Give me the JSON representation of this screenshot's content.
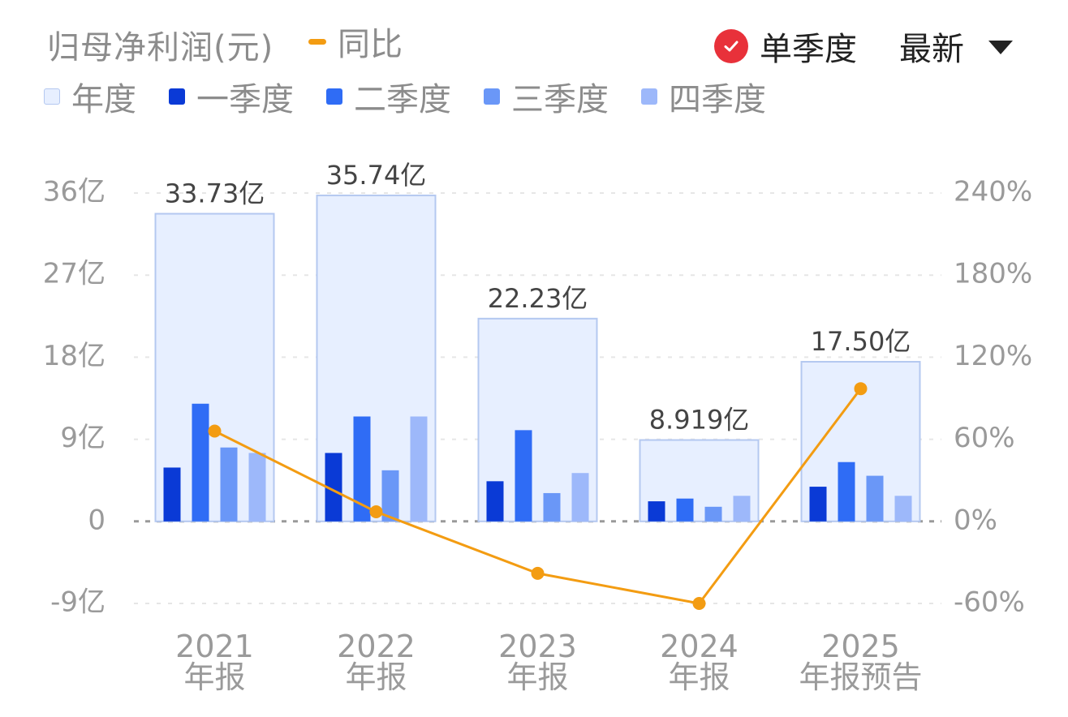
{
  "header": {
    "metric_title": "归母净利润(元)",
    "yoy_label": "同比",
    "toggle_label": "单季度",
    "toggle_checked": true,
    "period_dropdown": "最新"
  },
  "colors": {
    "annual_fill": "#e7efff",
    "annual_stroke": "#b4c8f0",
    "q1": "#0a3ad6",
    "q2": "#2f6cf5",
    "q3": "#6a97f7",
    "q4": "#9db8fa",
    "yoy_line": "#f39c12",
    "check": "#e8313a"
  },
  "chart_data": {
    "type": "bar",
    "categories": [
      [
        "2021",
        "年报"
      ],
      [
        "2022",
        "年报"
      ],
      [
        "2023",
        "年报"
      ],
      [
        "2024",
        "年报"
      ],
      [
        "2025",
        "年报预告"
      ]
    ],
    "annual": {
      "name": "年度",
      "values": [
        33.73,
        35.74,
        22.23,
        8.919,
        17.5
      ],
      "labels": [
        "33.73亿",
        "35.74亿",
        "22.23亿",
        "8.919亿",
        "17.50亿"
      ]
    },
    "series": [
      {
        "name": "一季度",
        "values": [
          5.9,
          7.5,
          4.4,
          2.2,
          3.8
        ]
      },
      {
        "name": "二季度",
        "values": [
          12.9,
          11.5,
          10.0,
          2.5,
          6.5
        ]
      },
      {
        "name": "三季度",
        "values": [
          8.1,
          5.6,
          3.1,
          1.6,
          5.0
        ]
      },
      {
        "name": "四季度",
        "values": [
          7.5,
          11.5,
          5.3,
          2.8,
          2.8
        ]
      }
    ],
    "yoy": {
      "name": "同比",
      "values": [
        66,
        7,
        -38,
        -60,
        97
      ]
    },
    "left_axis": {
      "ticks": [
        "36亿",
        "27亿",
        "18亿",
        "9亿",
        "0",
        "-9亿"
      ],
      "values": [
        36,
        27,
        18,
        9,
        0,
        -9
      ],
      "range": [
        -9,
        36
      ]
    },
    "right_axis": {
      "ticks": [
        "240%",
        "180%",
        "120%",
        "60%",
        "0%",
        "-60%"
      ],
      "values": [
        240,
        180,
        120,
        60,
        0,
        -60
      ],
      "range": [
        -60,
        240
      ]
    },
    "grid": true
  }
}
